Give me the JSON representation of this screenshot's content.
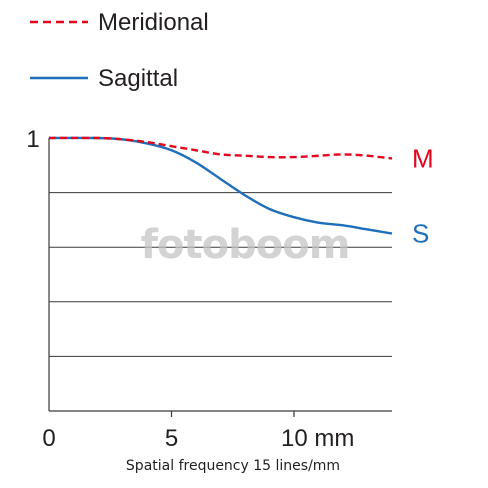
{
  "chart_data": {
    "type": "line",
    "xlabel": "Spatial frequency 15 lines/mm",
    "ylabel": "",
    "xlim": [
      0,
      14
    ],
    "ylim": [
      0,
      1
    ],
    "x_ticks": [
      {
        "value": 0,
        "label": "0"
      },
      {
        "value": 5,
        "label": "5"
      },
      {
        "value": 10,
        "label": "10 mm"
      }
    ],
    "y_ticks": [
      {
        "value": 1,
        "label": "1"
      }
    ],
    "y_gridlines": [
      0.2,
      0.4,
      0.6,
      0.8
    ],
    "grid": "horizontal",
    "legend_position": "top-left",
    "series": [
      {
        "name": "Meridional",
        "end_label": "M",
        "color": "#e3051b",
        "line_style": "dashed",
        "x": [
          0,
          2,
          3,
          4,
          5,
          6,
          7,
          8,
          9,
          10,
          11,
          12,
          13,
          14
        ],
        "y": [
          1.0,
          1.0,
          0.995,
          0.985,
          0.97,
          0.955,
          0.94,
          0.935,
          0.93,
          0.93,
          0.935,
          0.94,
          0.935,
          0.925
        ]
      },
      {
        "name": "Sagittal",
        "end_label": "S",
        "color": "#1f6fba",
        "line_style": "solid",
        "x": [
          0,
          2,
          3,
          4,
          5,
          6,
          7,
          8,
          9,
          10,
          11,
          12,
          13,
          14
        ],
        "y": [
          1.0,
          1.0,
          0.995,
          0.98,
          0.955,
          0.91,
          0.85,
          0.79,
          0.74,
          0.71,
          0.69,
          0.68,
          0.665,
          0.65
        ]
      }
    ]
  },
  "watermark": "fotoboom"
}
